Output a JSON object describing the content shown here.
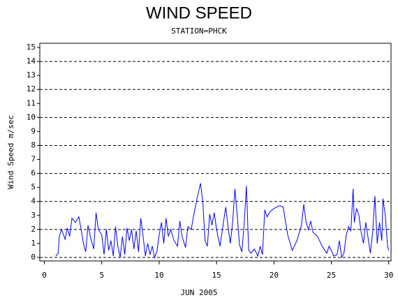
{
  "chart_data": {
    "type": "line",
    "title": "WIND SPEED",
    "subtitle": "STATION=PHCK",
    "x_label": "JUN 2005",
    "y_label": "Wind Speed m/sec",
    "xlim": [
      -0.4,
      30.2
    ],
    "xticks": [
      0,
      5,
      10,
      15,
      20,
      25,
      30
    ],
    "ylim": [
      -0.25,
      15.3
    ],
    "yticks": [
      0,
      1,
      2,
      3,
      4,
      5,
      6,
      7,
      8,
      9,
      10,
      11,
      12,
      13,
      14,
      15
    ],
    "gridlines": [
      0,
      2,
      4,
      6,
      8,
      10,
      12,
      14
    ],
    "series": [
      {
        "color": "#0000ff",
        "x": [
          1.0,
          1.2,
          1.3,
          1.5,
          1.8,
          2.0,
          2.2,
          2.4,
          2.7,
          3.0,
          3.2,
          3.4,
          3.6,
          3.8,
          4.0,
          4.3,
          4.5,
          4.7,
          5.0,
          5.2,
          5.4,
          5.6,
          5.8,
          6.0,
          6.2,
          6.4,
          6.6,
          6.8,
          7.0,
          7.2,
          7.4,
          7.6,
          7.8,
          8.0,
          8.2,
          8.4,
          8.6,
          8.8,
          9.0,
          9.2,
          9.4,
          9.6,
          9.8,
          10.0,
          10.2,
          10.4,
          10.6,
          10.8,
          11.0,
          11.3,
          11.6,
          11.8,
          12.0,
          12.3,
          12.5,
          12.8,
          13.0,
          13.3,
          13.6,
          13.8,
          14.0,
          14.2,
          14.4,
          14.6,
          14.8,
          15.0,
          15.3,
          15.6,
          15.8,
          16.0,
          16.2,
          16.4,
          16.6,
          16.8,
          17.0,
          17.2,
          17.4,
          17.6,
          17.8,
          18.0,
          18.3,
          18.6,
          18.8,
          19.0,
          19.2,
          19.4,
          19.7,
          20.0,
          20.5,
          20.8,
          21.2,
          21.6,
          22.0,
          22.4,
          22.6,
          22.8,
          23.0,
          23.2,
          23.4,
          23.8,
          24.2,
          24.6,
          24.8,
          25.0,
          25.2,
          25.5,
          25.7,
          25.9,
          26.1,
          26.3,
          26.5,
          26.7,
          26.9,
          27.0,
          27.2,
          27.4,
          27.6,
          27.8,
          28.0,
          28.2,
          28.4,
          28.6,
          28.8,
          29.0,
          29.2,
          29.4,
          29.5,
          29.7,
          29.9,
          30.0
        ],
        "values": [
          0.1,
          0.3,
          1.5,
          2.0,
          1.3,
          2.1,
          1.5,
          2.8,
          2.5,
          2.9,
          2.0,
          1.0,
          0.4,
          2.3,
          1.5,
          0.6,
          3.2,
          2.0,
          1.6,
          0.2,
          2.0,
          0.5,
          1.2,
          0.1,
          2.2,
          0.8,
          0.0,
          1.5,
          0.2,
          2.1,
          1.2,
          2.0,
          0.6,
          1.9,
          0.4,
          2.8,
          1.5,
          0.1,
          1.0,
          0.2,
          0.8,
          0.0,
          0.4,
          1.6,
          2.5,
          1.0,
          2.8,
          1.5,
          2.0,
          1.2,
          0.8,
          2.6,
          1.5,
          0.7,
          2.2,
          2.0,
          3.0,
          4.2,
          5.3,
          4.0,
          1.2,
          0.8,
          3.1,
          2.3,
          3.2,
          2.0,
          0.8,
          2.5,
          3.6,
          2.2,
          1.0,
          2.5,
          4.9,
          3.0,
          0.9,
          0.4,
          2.3,
          5.1,
          0.5,
          0.3,
          0.6,
          0.1,
          0.8,
          0.2,
          3.4,
          2.9,
          3.3,
          3.5,
          3.7,
          3.6,
          1.6,
          0.5,
          1.2,
          2.3,
          3.8,
          2.5,
          2.0,
          2.6,
          1.8,
          1.5,
          0.8,
          0.3,
          0.8,
          0.5,
          0.1,
          0.2,
          1.2,
          0.0,
          0.3,
          1.6,
          2.2,
          1.9,
          4.9,
          2.5,
          3.5,
          3.0,
          1.8,
          1.0,
          2.5,
          1.4,
          0.3,
          1.8,
          4.4,
          1.0,
          2.5,
          1.2,
          4.2,
          3.0,
          0.8,
          0.5
        ]
      }
    ]
  }
}
